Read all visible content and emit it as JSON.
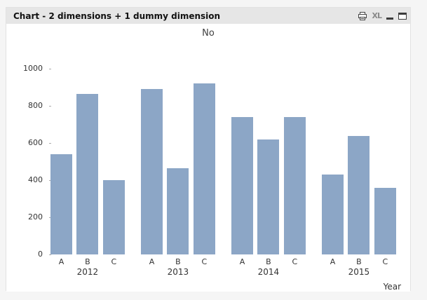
{
  "window": {
    "title": "Chart - 2 dimensions + 1 dummy dimension",
    "toolbar": {
      "print_icon": "printer-icon",
      "excel_label": "XL",
      "minimize_icon": "minimize-icon",
      "maximize_icon": "maximize-icon"
    }
  },
  "chart_data": {
    "type": "bar",
    "title": "No",
    "xlabel": "Year",
    "ylabel": "",
    "ylim": [
      0,
      1000
    ],
    "yticks": [
      0,
      200,
      400,
      600,
      800,
      1000
    ],
    "categories": [
      "2012",
      "2013",
      "2014",
      "2015"
    ],
    "bar_labels": [
      "A",
      "B",
      "C"
    ],
    "series": [
      {
        "name": "A",
        "values": [
          540,
          890,
          740,
          430
        ]
      },
      {
        "name": "B",
        "values": [
          865,
          465,
          620,
          640
        ]
      },
      {
        "name": "C",
        "values": [
          400,
          920,
          740,
          360
        ]
      }
    ],
    "bar_color": "#8CA6C6",
    "grid": false,
    "legend": false
  },
  "colors": {
    "bar": "#8CA6C6",
    "titlebar_bg": "#E6E6E6",
    "page_bg": "#F5F5F5"
  }
}
